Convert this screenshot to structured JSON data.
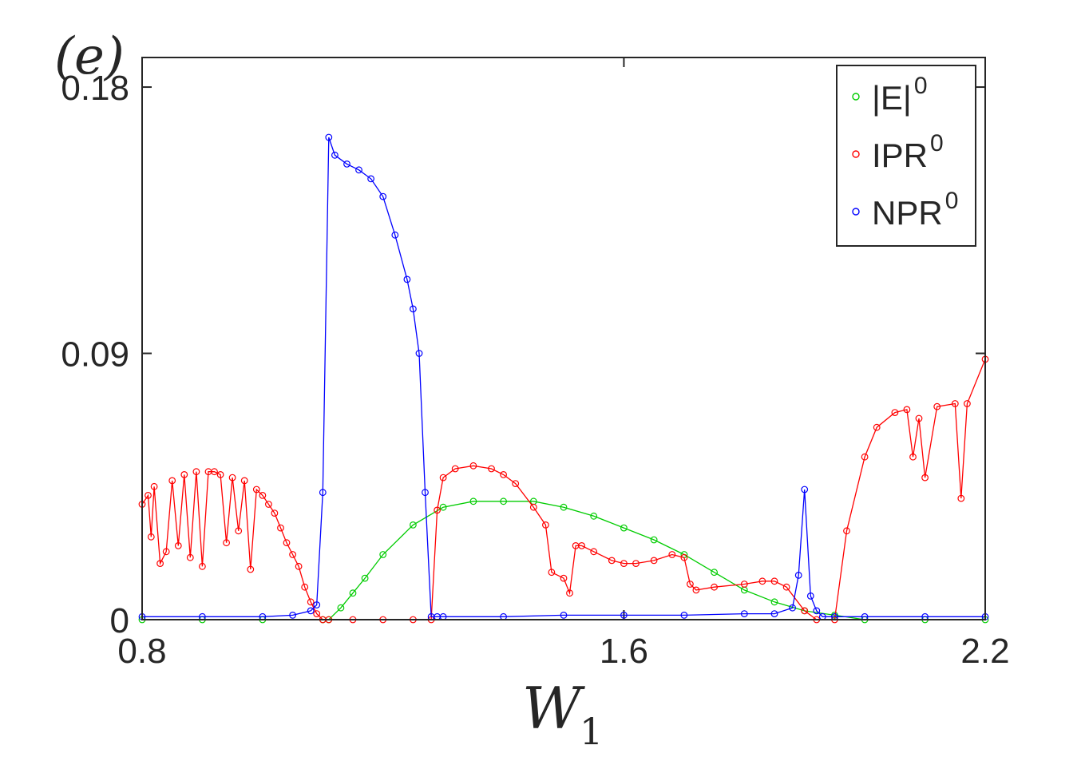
{
  "chart_data": {
    "type": "line",
    "panel_label": "(e)",
    "xlabel": "W",
    "xlabel_sub": "1",
    "xlim": [
      0.8,
      2.2
    ],
    "ylim": [
      0,
      0.19
    ],
    "x_ticks": [
      0.8,
      1.6,
      2.2
    ],
    "y_ticks": [
      0,
      0.09,
      0.18
    ],
    "x_tick_labels": [
      "0.8",
      "1.6",
      "2.2"
    ],
    "y_tick_labels": [
      "0",
      "0.09",
      "0.18"
    ],
    "grid": false,
    "legend_position": "top-right",
    "series": [
      {
        "name": "|E|",
        "name_sup": "0",
        "color": "#00cc00",
        "x": [
          0.8,
          0.9,
          1.0,
          1.1,
          1.11,
          1.13,
          1.15,
          1.17,
          1.2,
          1.25,
          1.3,
          1.35,
          1.4,
          1.45,
          1.5,
          1.55,
          1.6,
          1.65,
          1.7,
          1.75,
          1.8,
          1.85,
          1.9,
          1.95,
          2.0,
          2.1,
          2.2
        ],
        "y": [
          0.0,
          0.0,
          0.0,
          0.0,
          0.0,
          0.004,
          0.009,
          0.014,
          0.022,
          0.032,
          0.038,
          0.04,
          0.04,
          0.04,
          0.038,
          0.035,
          0.031,
          0.027,
          0.022,
          0.016,
          0.01,
          0.006,
          0.003,
          0.0015,
          0.0,
          0.0,
          0.0
        ]
      },
      {
        "name": "IPR",
        "name_sup": "0",
        "color": "#ff0000",
        "x": [
          0.8,
          0.81,
          0.815,
          0.82,
          0.83,
          0.84,
          0.85,
          0.86,
          0.87,
          0.88,
          0.89,
          0.9,
          0.91,
          0.92,
          0.93,
          0.94,
          0.95,
          0.96,
          0.97,
          0.98,
          0.99,
          1.0,
          1.01,
          1.02,
          1.03,
          1.04,
          1.05,
          1.06,
          1.07,
          1.08,
          1.09,
          1.1,
          1.11,
          1.15,
          1.2,
          1.25,
          1.28,
          1.29,
          1.3,
          1.32,
          1.35,
          1.38,
          1.4,
          1.42,
          1.45,
          1.47,
          1.48,
          1.5,
          1.51,
          1.52,
          1.53,
          1.55,
          1.58,
          1.6,
          1.62,
          1.65,
          1.68,
          1.7,
          1.71,
          1.72,
          1.75,
          1.8,
          1.83,
          1.85,
          1.87,
          1.9,
          1.92,
          1.95,
          1.97,
          2.0,
          2.02,
          2.05,
          2.07,
          2.08,
          2.09,
          2.1,
          2.12,
          2.15,
          2.16,
          2.17,
          2.2
        ],
        "y": [
          0.039,
          0.042,
          0.028,
          0.045,
          0.019,
          0.023,
          0.047,
          0.025,
          0.049,
          0.021,
          0.05,
          0.018,
          0.05,
          0.05,
          0.049,
          0.026,
          0.048,
          0.03,
          0.047,
          0.017,
          0.044,
          0.042,
          0.039,
          0.036,
          0.031,
          0.026,
          0.022,
          0.018,
          0.011,
          0.006,
          0.002,
          0.0,
          0.0,
          0.0,
          0.0,
          0.0,
          0.0,
          0.037,
          0.048,
          0.051,
          0.052,
          0.051,
          0.049,
          0.046,
          0.038,
          0.032,
          0.016,
          0.014,
          0.009,
          0.025,
          0.025,
          0.023,
          0.02,
          0.019,
          0.019,
          0.02,
          0.022,
          0.021,
          0.012,
          0.01,
          0.011,
          0.012,
          0.013,
          0.013,
          0.011,
          0.003,
          0.0,
          0.0,
          0.03,
          0.055,
          0.065,
          0.07,
          0.071,
          0.055,
          0.068,
          0.048,
          0.072,
          0.073,
          0.041,
          0.073,
          0.088
        ]
      },
      {
        "name": "NPR",
        "name_sup": "0",
        "color": "#0000ff",
        "x": [
          0.8,
          0.9,
          1.0,
          1.05,
          1.08,
          1.09,
          1.1,
          1.11,
          1.12,
          1.14,
          1.16,
          1.18,
          1.2,
          1.22,
          1.24,
          1.25,
          1.26,
          1.27,
          1.28,
          1.29,
          1.3,
          1.4,
          1.5,
          1.6,
          1.7,
          1.8,
          1.85,
          1.88,
          1.89,
          1.9,
          1.91,
          1.92,
          1.93,
          1.95,
          2.0,
          2.1,
          2.2
        ],
        "y": [
          0.001,
          0.001,
          0.001,
          0.0015,
          0.003,
          0.005,
          0.043,
          0.163,
          0.157,
          0.154,
          0.152,
          0.149,
          0.143,
          0.13,
          0.115,
          0.105,
          0.09,
          0.043,
          0.001,
          0.001,
          0.001,
          0.001,
          0.0015,
          0.0015,
          0.0015,
          0.002,
          0.002,
          0.004,
          0.015,
          0.044,
          0.008,
          0.003,
          0.001,
          0.001,
          0.001,
          0.001,
          0.001
        ]
      }
    ]
  }
}
